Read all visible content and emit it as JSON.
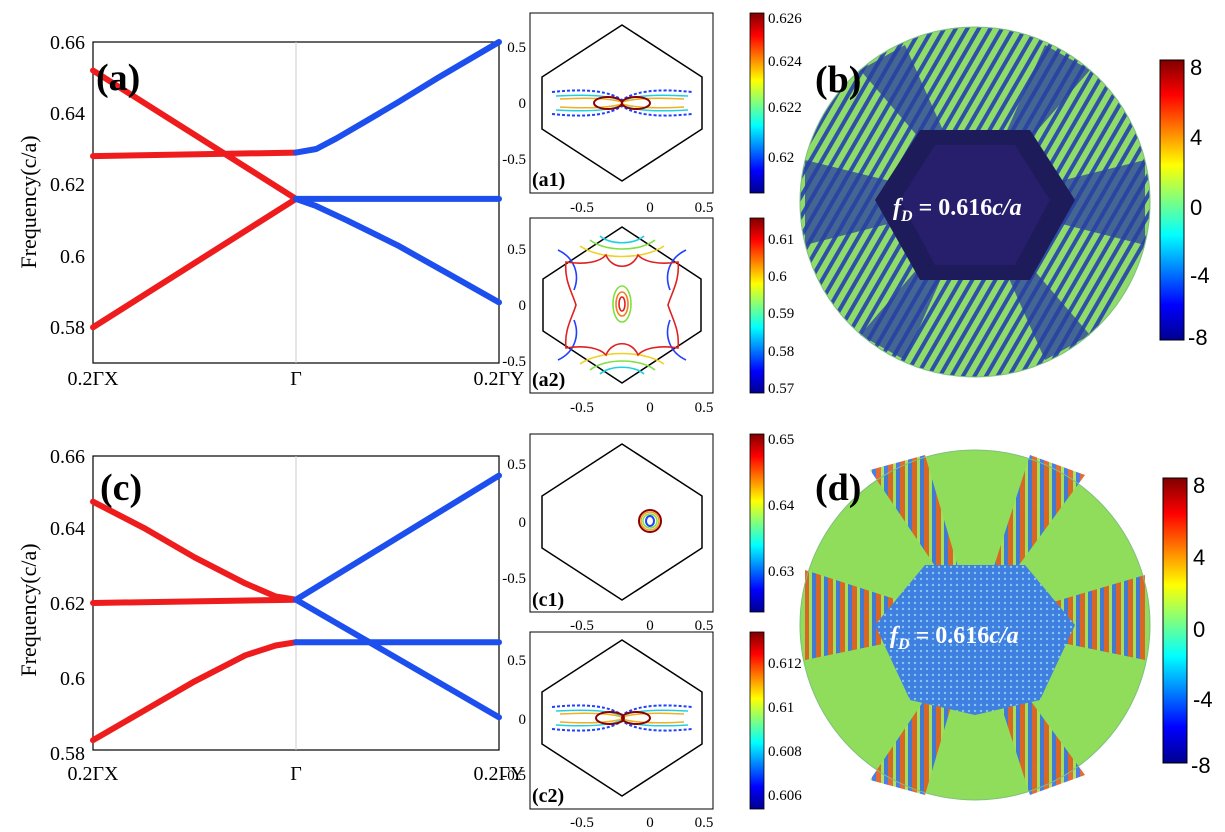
{
  "chart_data": [
    {
      "type": "line",
      "id": "a",
      "panel_label": "(a)",
      "ylabel": "Frequency(c/a)",
      "xticks": [
        "0.2ΓX",
        "Γ",
        "0.2ΓY"
      ],
      "yticks": [
        0.58,
        0.6,
        0.62,
        0.64,
        0.66
      ],
      "xlim": [
        -1,
        1
      ],
      "ylim": [
        0.57,
        0.66
      ],
      "series": [
        {
          "color": "#ee1c1c",
          "x": [
            -1,
            0
          ],
          "y": [
            0.652,
            0.616
          ]
        },
        {
          "color": "#ee1c1c",
          "x": [
            -1,
            0
          ],
          "y": [
            0.628,
            0.629
          ]
        },
        {
          "color": "#ee1c1c",
          "x": [
            -1,
            0
          ],
          "y": [
            0.58,
            0.616
          ]
        },
        {
          "color": "#1c4fee",
          "x": [
            0,
            0.1,
            0.2,
            0.35,
            0.5,
            0.7,
            1.0
          ],
          "y": [
            0.629,
            0.63,
            0.633,
            0.638,
            0.643,
            0.65,
            0.66
          ]
        },
        {
          "color": "#1c4fee",
          "x": [
            0,
            1
          ],
          "y": [
            0.616,
            0.616
          ]
        },
        {
          "color": "#1c4fee",
          "x": [
            0,
            0.1,
            0.25,
            0.5,
            0.75,
            1.0
          ],
          "y": [
            0.616,
            0.614,
            0.61,
            0.603,
            0.595,
            0.587
          ]
        }
      ]
    },
    {
      "type": "line",
      "id": "c",
      "panel_label": "(c)",
      "ylabel": "Frequency(c/a)",
      "xticks": [
        "0.2ΓX",
        "Γ",
        "0.2ΓY"
      ],
      "yticks": [
        0.58,
        0.6,
        0.62,
        0.64,
        0.66
      ],
      "xlim": [
        -1,
        1
      ],
      "ylim": [
        0.57,
        0.66
      ],
      "series": [
        {
          "color": "#ee1c1c",
          "x": [
            -1,
            -0.75,
            -0.5,
            -0.25,
            -0.1,
            0
          ],
          "y": [
            0.646,
            0.638,
            0.629,
            0.621,
            0.617,
            0.616
          ]
        },
        {
          "color": "#ee1c1c",
          "x": [
            -1,
            0
          ],
          "y": [
            0.615,
            0.616
          ]
        },
        {
          "color": "#ee1c1c",
          "x": [
            -1,
            -0.75,
            -0.5,
            -0.25,
            -0.1,
            0
          ],
          "y": [
            0.573,
            0.582,
            0.591,
            0.599,
            0.602,
            0.603
          ]
        },
        {
          "color": "#1c4fee",
          "x": [
            0,
            1
          ],
          "y": [
            0.616,
            0.654
          ]
        },
        {
          "color": "#1c4fee",
          "x": [
            0,
            1
          ],
          "y": [
            0.603,
            0.603
          ]
        },
        {
          "color": "#1c4fee",
          "x": [
            0,
            1
          ],
          "y": [
            0.616,
            0.58
          ]
        }
      ]
    },
    {
      "type": "heatmap",
      "id": "a1",
      "panel_label": "(a1)",
      "xticks": [
        "-0.5",
        "0",
        "0.5"
      ],
      "yticks": [
        "0.5",
        "0",
        "-0.5"
      ],
      "colorbar_ticks": [
        "0.626",
        "0.624",
        "0.622",
        "0.62"
      ]
    },
    {
      "type": "heatmap",
      "id": "a2",
      "panel_label": "(a2)",
      "xticks": [
        "-0.5",
        "0",
        "0.5"
      ],
      "yticks": [
        "0.5",
        "0",
        "-0.5"
      ],
      "colorbar_ticks": [
        "0.61",
        "0.6",
        "0.59",
        "0.58",
        "0.57"
      ]
    },
    {
      "type": "heatmap",
      "id": "c1",
      "panel_label": "(c1)",
      "xticks": [
        "-0.5",
        "0",
        "0.5"
      ],
      "yticks": [
        "0.5",
        "0",
        "-0.5"
      ],
      "colorbar_ticks": [
        "0.65",
        "0.64",
        "0.63"
      ]
    },
    {
      "type": "heatmap",
      "id": "c2",
      "panel_label": "(c2)",
      "xticks": [
        "-0.5",
        "0",
        "0.5"
      ],
      "yticks": [
        "0.5",
        "0",
        "-0.5"
      ],
      "colorbar_ticks": [
        "0.612",
        "0.61",
        "0.608",
        "0.606"
      ]
    },
    {
      "type": "heatmap",
      "id": "b",
      "panel_label": "(b)",
      "annotation": "f_D = 0.616c/a",
      "colorbar_ticks": [
        "8",
        "4",
        "0",
        "-4",
        "-8"
      ]
    },
    {
      "type": "heatmap",
      "id": "d",
      "panel_label": "(d)",
      "annotation": "f_D = 0.616c/a",
      "colorbar_ticks": [
        "8",
        "4",
        "0",
        "-4",
        "-8"
      ]
    }
  ],
  "labels": {
    "a": "(a)",
    "c": "(c)",
    "b": "(b)",
    "d": "(d)",
    "a1": "(a1)",
    "a2": "(a2)",
    "c1": "(c1)",
    "c2": "(c2)",
    "ylabel": "Frequency(c/a)",
    "fd_main": "f",
    "fd_sub": "D",
    "fd_rest": " = 0.616",
    "fd_unit": "c/a",
    "xt0": "0.2ΓX",
    "xt1": "Γ",
    "xt2": "0.2ΓY",
    "y066": "0.66",
    "y064": "0.64",
    "y062": "0.62",
    "y060": "0.6",
    "y058": "0.58",
    "s05": "0.5",
    "s0": "0",
    "sm05": "-0.5",
    "cb_a1": [
      "0.626",
      "0.624",
      "0.622",
      "0.62"
    ],
    "cb_a2": [
      "0.61",
      "0.6",
      "0.59",
      "0.58",
      "0.57"
    ],
    "cb_c1": [
      "0.65",
      "0.64",
      "0.63"
    ],
    "cb_c2": [
      "0.612",
      "0.61",
      "0.608",
      "0.606"
    ],
    "cb_big": [
      "8",
      "4",
      "0",
      "-4",
      "-8"
    ]
  }
}
